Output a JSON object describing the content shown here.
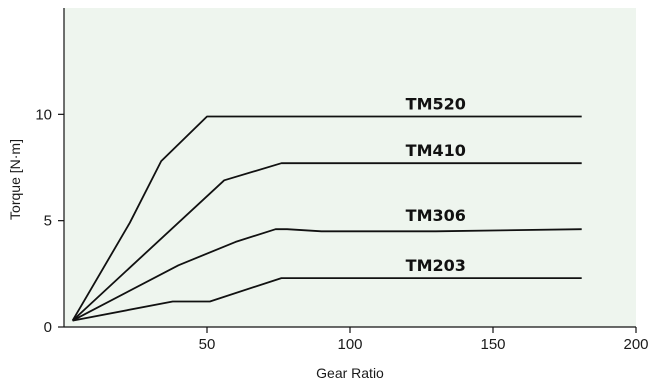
{
  "chart_data": {
    "type": "line",
    "title": "",
    "xlabel": "Gear Ratio",
    "ylabel": "Torque [N·m]",
    "xlim": [
      0,
      200
    ],
    "ylim": [
      0,
      15
    ],
    "x_ticks": [
      50,
      100,
      150,
      200
    ],
    "y_ticks": [
      0,
      5,
      10
    ],
    "grid": false,
    "legend": "inline labels above lines",
    "background_color": "#eef5ee",
    "series": [
      {
        "name": "TM520",
        "points": [
          [
            3,
            0.3
          ],
          [
            23,
            4.9
          ],
          [
            34,
            7.8
          ],
          [
            50,
            9.9
          ],
          [
            181,
            9.9
          ]
        ]
      },
      {
        "name": "TM410",
        "points": [
          [
            3,
            0.3
          ],
          [
            56,
            6.9
          ],
          [
            76,
            7.7
          ],
          [
            181,
            7.7
          ]
        ]
      },
      {
        "name": "TM306",
        "points": [
          [
            3,
            0.3
          ],
          [
            40,
            2.9
          ],
          [
            60,
            4.0
          ],
          [
            74,
            4.6
          ],
          [
            78,
            4.6
          ],
          [
            90,
            4.5
          ],
          [
            130,
            4.5
          ],
          [
            181,
            4.6
          ]
        ]
      },
      {
        "name": "TM203",
        "points": [
          [
            3,
            0.3
          ],
          [
            38,
            1.2
          ],
          [
            51,
            1.2
          ],
          [
            76,
            2.3
          ],
          [
            181,
            2.3
          ]
        ]
      }
    ]
  }
}
